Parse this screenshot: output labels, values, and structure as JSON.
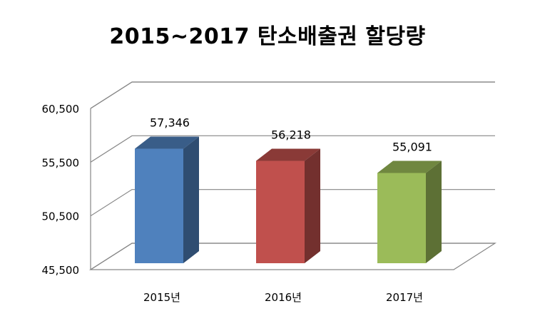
{
  "chart_data": {
    "type": "bar",
    "title": "2015~2017 탄소배출권 할당량",
    "categories": [
      "2015년",
      "2016년",
      "2017년"
    ],
    "values": [
      57346,
      56218,
      55091
    ],
    "data_labels": [
      "57,346",
      "56,218",
      "55,091"
    ],
    "y_ticks": [
      "45,500",
      "50,500",
      "55,500",
      "60,500"
    ],
    "y_tick_values": [
      45500,
      50500,
      55500,
      60500
    ],
    "ylim": [
      45500,
      60500
    ],
    "grid": true,
    "legend": "none",
    "style": "3d-column",
    "colors": [
      "#4F81BD",
      "#C0504D",
      "#9BBB59"
    ],
    "xlabel": "",
    "ylabel": ""
  }
}
